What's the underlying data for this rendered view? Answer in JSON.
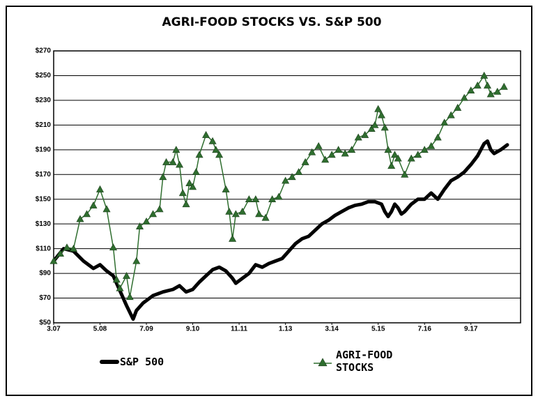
{
  "chart_data": {
    "type": "line",
    "title": "AGRI-FOOD STOCKS VS. S&P 500",
    "xlim": [
      0,
      141
    ],
    "xticks": [
      {
        "value": 0,
        "label": "3.07"
      },
      {
        "value": 14,
        "label": "5.08"
      },
      {
        "value": 28,
        "label": "7.09"
      },
      {
        "value": 42,
        "label": "9.10"
      },
      {
        "value": 56,
        "label": "11.11"
      },
      {
        "value": 70,
        "label": "1.13"
      },
      {
        "value": 84,
        "label": "3.14"
      },
      {
        "value": 98,
        "label": "5.15"
      },
      {
        "value": 112,
        "label": "7.16"
      },
      {
        "value": 126,
        "label": "9.17"
      }
    ],
    "ylim": [
      50,
      270
    ],
    "yticks": [
      {
        "value": 50,
        "label": "$50"
      },
      {
        "value": 70,
        "label": "$70"
      },
      {
        "value": 90,
        "label": "$90"
      },
      {
        "value": 110,
        "label": "$110"
      },
      {
        "value": 130,
        "label": "$130"
      },
      {
        "value": 150,
        "label": "$150"
      },
      {
        "value": 170,
        "label": "$170"
      },
      {
        "value": 190,
        "label": "$190"
      },
      {
        "value": 210,
        "label": "$210"
      },
      {
        "value": 230,
        "label": "$230"
      },
      {
        "value": 250,
        "label": "$250"
      },
      {
        "value": 270,
        "label": "$270"
      }
    ],
    "grid": true,
    "series": [
      {
        "name": "S&P 500",
        "color": "#000000",
        "marker": "none",
        "x": [
          0,
          3,
          6,
          9,
          12,
          14,
          16,
          18,
          20,
          22,
          24,
          25,
          27,
          30,
          33,
          36,
          38,
          40,
          42,
          44,
          46,
          48,
          50,
          52,
          54,
          55,
          57,
          59,
          61,
          63,
          65,
          67,
          69,
          71,
          73,
          75,
          77,
          79,
          81,
          83,
          85,
          87,
          89,
          91,
          93,
          95,
          97,
          99,
          100,
          101,
          102,
          103,
          104,
          105,
          106,
          108,
          110,
          112,
          114,
          116,
          118,
          120,
          122,
          124,
          126,
          128,
          130,
          131,
          132,
          133,
          135,
          137
        ],
        "values": [
          100,
          110,
          108,
          100,
          94,
          97,
          92,
          88,
          76,
          64,
          53,
          60,
          66,
          72,
          75,
          77,
          80,
          75,
          77,
          83,
          88,
          93,
          95,
          92,
          86,
          82,
          86,
          90,
          97,
          95,
          98,
          100,
          102,
          108,
          114,
          118,
          120,
          125,
          130,
          133,
          137,
          140,
          143,
          145,
          146,
          148,
          148,
          146,
          140,
          136,
          140,
          146,
          143,
          138,
          140,
          146,
          150,
          150,
          155,
          150,
          158,
          165,
          168,
          172,
          178,
          185,
          195,
          197,
          190,
          187,
          190,
          194
        ]
      },
      {
        "name": "AGRI-FOOD STOCKS",
        "color": "#2f6e2f",
        "marker": "triangle",
        "x": [
          0,
          2,
          4,
          6,
          8,
          10,
          12,
          14,
          16,
          18,
          19,
          20,
          22,
          23,
          25,
          26,
          28,
          30,
          32,
          33,
          34,
          36,
          37,
          38,
          39,
          40,
          41,
          42,
          43,
          44,
          46,
          48,
          49,
          50,
          52,
          53,
          54,
          55,
          57,
          59,
          61,
          62,
          64,
          66,
          68,
          70,
          72,
          74,
          76,
          78,
          80,
          82,
          84,
          86,
          88,
          90,
          92,
          94,
          96,
          97,
          98,
          99,
          100,
          101,
          102,
          103,
          104,
          106,
          108,
          110,
          112,
          114,
          116,
          118,
          120,
          122,
          124,
          126,
          128,
          130,
          131,
          132,
          134,
          136
        ],
        "values": [
          100,
          106,
          111,
          110,
          134,
          138,
          145,
          158,
          142,
          111,
          85,
          78,
          88,
          71,
          100,
          128,
          132,
          138,
          142,
          168,
          180,
          180,
          190,
          178,
          155,
          146,
          163,
          160,
          172,
          186,
          202,
          197,
          190,
          186,
          158,
          140,
          118,
          138,
          140,
          150,
          150,
          138,
          135,
          150,
          152,
          165,
          168,
          172,
          180,
          188,
          193,
          182,
          186,
          190,
          187,
          190,
          200,
          202,
          207,
          210,
          223,
          218,
          208,
          190,
          177,
          186,
          183,
          170,
          183,
          186,
          190,
          193,
          200,
          212,
          218,
          224,
          232,
          238,
          242,
          250,
          242,
          235,
          237,
          241
        ]
      }
    ]
  }
}
